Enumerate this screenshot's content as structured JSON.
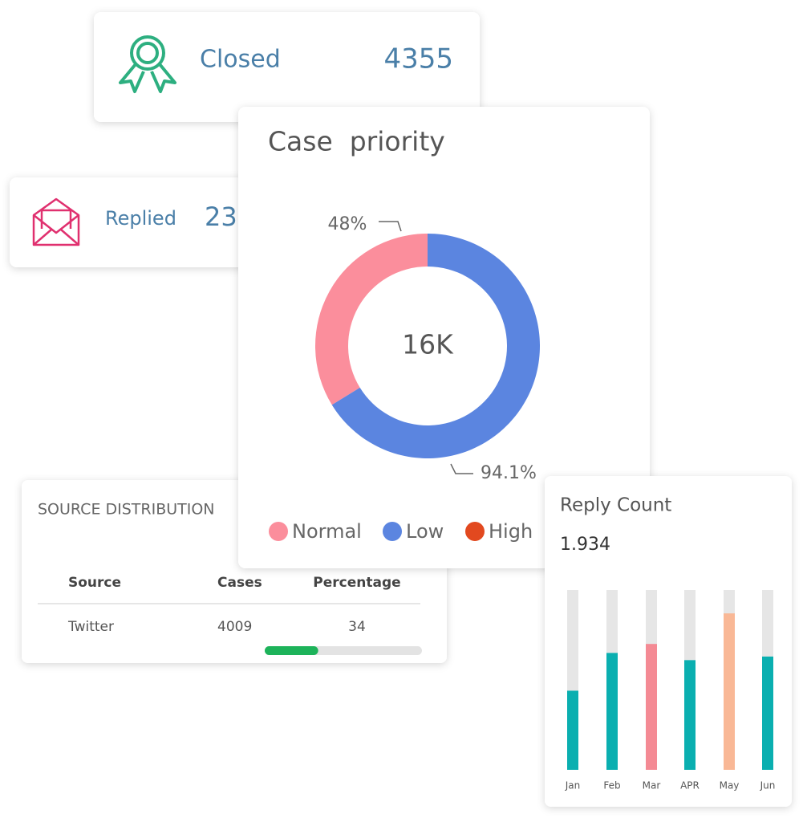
{
  "cards": {
    "closed": {
      "label": "Closed",
      "value": 4355
    },
    "replied": {
      "label": "Replied",
      "value": 23
    }
  },
  "source_distribution": {
    "title": "SOURCE DISTRIBUTION",
    "columns": [
      "Source",
      "Cases",
      "Percentage"
    ],
    "rows": [
      [
        "Twitter",
        4009,
        34
      ]
    ],
    "bar_color": "#1db35a"
  },
  "chart_data": [
    {
      "type": "pie",
      "title": "Case  priority",
      "center_label": "16K",
      "categories": [
        "Normal",
        "Low",
        "High"
      ],
      "values": [
        48,
        94.1,
        0
      ],
      "value_labels": [
        "48%",
        "94.1%",
        null
      ],
      "colors": [
        "#fb8e9c",
        "#5b85e0",
        "#e2491f"
      ],
      "donut": true,
      "legend": "bottom"
    },
    {
      "type": "bar",
      "title": "Reply Count",
      "subtitle": "1.934",
      "categories": [
        "Jan",
        "Feb",
        "Mar",
        "APR",
        "May",
        "Jun"
      ],
      "values": [
        44,
        65,
        70,
        61,
        87,
        63
      ],
      "colors": [
        "#0aafb0",
        "#0aafb0",
        "#f48a94",
        "#0aafb0",
        "#f9b896",
        "#0aafb0"
      ],
      "ylim": [
        0,
        100
      ],
      "track_color": "#e6e6e6"
    }
  ]
}
